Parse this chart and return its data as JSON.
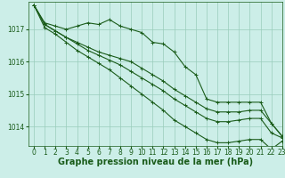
{
  "background_color": "#cceee8",
  "grid_color": "#99ccbb",
  "line_color": "#1a5c1a",
  "xlabel": "Graphe pression niveau de la mer (hPa)",
  "xlabel_fontsize": 7,
  "xlim": [
    -0.5,
    23
  ],
  "ylim": [
    1013.4,
    1017.85
  ],
  "yticks": [
    1014,
    1015,
    1016,
    1017
  ],
  "xticks": [
    0,
    1,
    2,
    3,
    4,
    5,
    6,
    7,
    8,
    9,
    10,
    11,
    12,
    13,
    14,
    15,
    16,
    17,
    18,
    19,
    20,
    21,
    22,
    23
  ],
  "series": [
    [
      1017.75,
      1017.2,
      1017.1,
      1017.0,
      1017.1,
      1017.2,
      1017.15,
      1017.3,
      1017.1,
      1017.0,
      1016.9,
      1016.6,
      1016.55,
      1016.3,
      1015.85,
      1015.6,
      1014.85,
      1014.75,
      1014.75,
      1014.75,
      1014.75,
      1014.75,
      1014.1,
      1013.7
    ],
    [
      1017.75,
      1017.15,
      1016.95,
      1016.75,
      1016.6,
      1016.45,
      1016.3,
      1016.2,
      1016.1,
      1016.0,
      1015.8,
      1015.6,
      1015.4,
      1015.15,
      1014.95,
      1014.75,
      1014.55,
      1014.45,
      1014.45,
      1014.45,
      1014.5,
      1014.5,
      1014.1,
      1013.7
    ],
    [
      1017.75,
      1017.15,
      1016.95,
      1016.75,
      1016.55,
      1016.35,
      1016.2,
      1016.05,
      1015.9,
      1015.7,
      1015.5,
      1015.3,
      1015.1,
      1014.85,
      1014.65,
      1014.45,
      1014.25,
      1014.15,
      1014.15,
      1014.2,
      1014.25,
      1014.25,
      1013.8,
      1013.65
    ],
    [
      1017.75,
      1017.05,
      1016.85,
      1016.6,
      1016.35,
      1016.15,
      1015.95,
      1015.75,
      1015.5,
      1015.25,
      1015.0,
      1014.75,
      1014.5,
      1014.2,
      1014.0,
      1013.8,
      1013.6,
      1013.5,
      1013.5,
      1013.55,
      1013.6,
      1013.6,
      1013.3,
      1013.55
    ]
  ],
  "marker": "+",
  "markersize": 3,
  "linewidth": 0.8,
  "tick_labelsize": 5.5
}
